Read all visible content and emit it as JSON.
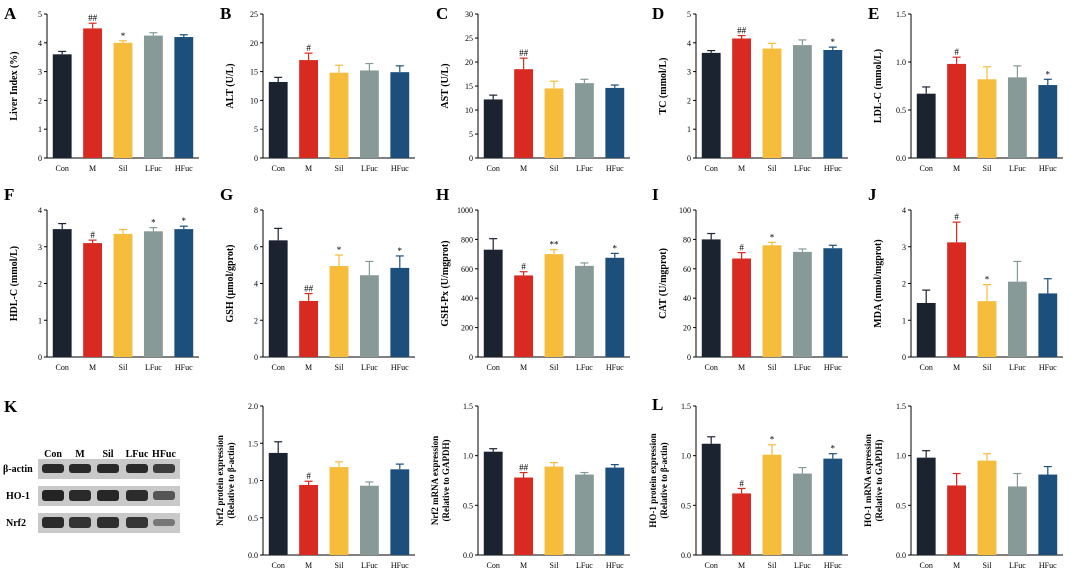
{
  "figure": {
    "groups": [
      "Con",
      "M",
      "Sil",
      "LFuc",
      "HFuc"
    ],
    "colors": [
      "#1b2230",
      "#d82a20",
      "#f6bd3c",
      "#889a97",
      "#1c4f7c"
    ]
  },
  "chart_data": [
    {
      "id": "A",
      "type": "bar",
      "panel_letter": "A",
      "ylabel": "Liver Index (%)",
      "ylim": [
        0,
        5
      ],
      "yticks": [
        0,
        1,
        2,
        3,
        4,
        5
      ],
      "categories": [
        "Con",
        "M",
        "Sil",
        "LFuc",
        "HFuc"
      ],
      "values": [
        3.6,
        4.5,
        4.0,
        4.25,
        4.2
      ],
      "errors": [
        0.1,
        0.18,
        0.07,
        0.1,
        0.08
      ],
      "marks": [
        "",
        "##",
        "*",
        "",
        ""
      ]
    },
    {
      "id": "B",
      "type": "bar",
      "panel_letter": "B",
      "ylabel": "ALT (U/L)",
      "ylim": [
        0,
        25
      ],
      "yticks": [
        0,
        5,
        10,
        15,
        20,
        25
      ],
      "categories": [
        "Con",
        "M",
        "Sil",
        "LFuc",
        "HFuc"
      ],
      "values": [
        13.2,
        17.0,
        14.8,
        15.2,
        14.9
      ],
      "errors": [
        0.8,
        1.2,
        1.3,
        1.2,
        1.1
      ],
      "marks": [
        "",
        "#",
        "",
        "",
        ""
      ]
    },
    {
      "id": "C",
      "type": "bar",
      "panel_letter": "C",
      "ylabel": "AST (U/L)",
      "ylim": [
        0,
        30
      ],
      "yticks": [
        0,
        5,
        10,
        15,
        20,
        25,
        30
      ],
      "categories": [
        "Con",
        "M",
        "Sil",
        "LFuc",
        "HFuc"
      ],
      "values": [
        12.2,
        18.5,
        14.5,
        15.6,
        14.6
      ],
      "errors": [
        0.9,
        2.3,
        1.5,
        0.8,
        0.6
      ],
      "marks": [
        "",
        "##",
        "",
        "",
        ""
      ]
    },
    {
      "id": "D",
      "type": "bar",
      "panel_letter": "D",
      "ylabel": "TC (mmol/L)",
      "ylim": [
        0,
        5
      ],
      "yticks": [
        0,
        1,
        2,
        3,
        4,
        5
      ],
      "categories": [
        "Con",
        "M",
        "Sil",
        "LFuc",
        "HFuc"
      ],
      "values": [
        3.65,
        4.15,
        3.8,
        3.92,
        3.75
      ],
      "errors": [
        0.08,
        0.1,
        0.18,
        0.18,
        0.1
      ],
      "marks": [
        "",
        "##",
        "",
        "",
        "*"
      ]
    },
    {
      "id": "E",
      "type": "bar",
      "panel_letter": "E",
      "ylabel": "LDL-C (mmol/L)",
      "ylim": [
        0,
        1.5
      ],
      "yticks": [
        "0.0",
        "0.5",
        "1.0",
        "1.5"
      ],
      "categories": [
        "Con",
        "M",
        "Sil",
        "LFuc",
        "HFuc"
      ],
      "values": [
        0.67,
        0.98,
        0.82,
        0.84,
        0.76
      ],
      "errors": [
        0.07,
        0.07,
        0.13,
        0.12,
        0.06
      ],
      "marks": [
        "",
        "#",
        "",
        "",
        "*"
      ]
    },
    {
      "id": "F",
      "type": "bar",
      "panel_letter": "F",
      "ylabel": "HDL-C (mmol/L)",
      "ylim": [
        0,
        4
      ],
      "yticks": [
        0,
        1,
        2,
        3,
        4
      ],
      "categories": [
        "Con",
        "M",
        "Sil",
        "LFuc",
        "HFuc"
      ],
      "values": [
        3.48,
        3.1,
        3.35,
        3.42,
        3.48
      ],
      "errors": [
        0.15,
        0.08,
        0.12,
        0.1,
        0.08
      ],
      "marks": [
        "",
        "#",
        "",
        "*",
        "*"
      ]
    },
    {
      "id": "G",
      "type": "bar",
      "panel_letter": "G",
      "ylabel": "GSH (μmol/gprot)",
      "ylim": [
        0,
        8
      ],
      "yticks": [
        0,
        2,
        4,
        6,
        8
      ],
      "categories": [
        "Con",
        "M",
        "Sil",
        "LFuc",
        "HFuc"
      ],
      "values": [
        6.35,
        3.05,
        4.95,
        4.45,
        4.85
      ],
      "errors": [
        0.65,
        0.4,
        0.6,
        0.75,
        0.65
      ],
      "marks": [
        "",
        "##",
        "*",
        "",
        "*"
      ]
    },
    {
      "id": "H",
      "type": "bar",
      "panel_letter": "H",
      "ylabel": "GSH-Px (U/mgprot)",
      "ylim": [
        0,
        1000
      ],
      "yticks": [
        0,
        200,
        400,
        600,
        800,
        1000
      ],
      "categories": [
        "Con",
        "M",
        "Sil",
        "LFuc",
        "HFuc"
      ],
      "values": [
        730,
        555,
        700,
        620,
        675
      ],
      "errors": [
        75,
        25,
        30,
        20,
        30
      ],
      "marks": [
        "",
        "#",
        "**",
        "",
        "*"
      ]
    },
    {
      "id": "I",
      "type": "bar",
      "panel_letter": "I",
      "ylabel": "CAT (U/mgprot)",
      "ylim": [
        0,
        100
      ],
      "yticks": [
        0,
        20,
        40,
        60,
        80,
        100
      ],
      "categories": [
        "Con",
        "M",
        "Sil",
        "LFuc",
        "HFuc"
      ],
      "values": [
        80,
        67,
        76,
        71.5,
        74
      ],
      "errors": [
        4,
        4,
        2,
        2,
        2
      ],
      "marks": [
        "",
        "#",
        "*",
        "",
        ""
      ]
    },
    {
      "id": "J",
      "type": "bar",
      "panel_letter": "J",
      "ylabel": "MDA (nmol/mgprot)",
      "ylim": [
        0,
        4
      ],
      "yticks": [
        0,
        1,
        2,
        3,
        4
      ],
      "categories": [
        "Con",
        "M",
        "Sil",
        "LFuc",
        "HFuc"
      ],
      "values": [
        1.47,
        3.12,
        1.52,
        2.05,
        1.73
      ],
      "errors": [
        0.35,
        0.55,
        0.45,
        0.55,
        0.4
      ],
      "marks": [
        "",
        "#",
        "*",
        "",
        ""
      ]
    },
    {
      "id": "K1",
      "type": "bar",
      "panel_letter": "",
      "ylabel": "Nrf2 protein expression (Relative to β-actin)",
      "ylim": [
        0,
        2.0
      ],
      "yticks": [
        "0.0",
        "0.5",
        "1.0",
        "1.5",
        "2.0"
      ],
      "categories": [
        "Con",
        "M",
        "Sil",
        "LFuc",
        "HFuc"
      ],
      "values": [
        1.37,
        0.94,
        1.18,
        0.93,
        1.15
      ],
      "errors": [
        0.15,
        0.05,
        0.07,
        0.05,
        0.07
      ],
      "marks": [
        "",
        "#",
        "",
        "",
        ""
      ]
    },
    {
      "id": "K2",
      "type": "bar",
      "panel_letter": "",
      "ylabel": "Nrf2 mRNA expression (Relative to GAPDH)",
      "ylim": [
        0,
        1.5
      ],
      "yticks": [
        "0.0",
        "0.5",
        "1.0",
        "1.5"
      ],
      "categories": [
        "Con",
        "M",
        "Sil",
        "LFuc",
        "HFuc"
      ],
      "values": [
        1.04,
        0.78,
        0.89,
        0.81,
        0.88
      ],
      "errors": [
        0.03,
        0.05,
        0.04,
        0.02,
        0.03
      ],
      "marks": [
        "",
        "##",
        "",
        "",
        ""
      ]
    },
    {
      "id": "L1",
      "type": "bar",
      "panel_letter": "L",
      "ylabel": "HO-1 protein expression (Relative to β-actin)",
      "ylim": [
        0,
        1.5
      ],
      "yticks": [
        "0.0",
        "0.5",
        "1.0",
        "1.5"
      ],
      "categories": [
        "Con",
        "M",
        "Sil",
        "LFuc",
        "HFuc"
      ],
      "values": [
        1.12,
        0.62,
        1.01,
        0.82,
        0.97
      ],
      "errors": [
        0.07,
        0.05,
        0.1,
        0.06,
        0.05
      ],
      "marks": [
        "",
        "#",
        "*",
        "",
        "*"
      ]
    },
    {
      "id": "L2",
      "type": "bar",
      "panel_letter": "",
      "ylabel": "HO-1 mRNA expression (Relative to GAPDH)",
      "ylim": [
        0,
        1.5
      ],
      "yticks": [
        "0.0",
        "0.5",
        "1.0",
        "1.5"
      ],
      "categories": [
        "Con",
        "M",
        "Sil",
        "LFuc",
        "HFuc"
      ],
      "values": [
        0.98,
        0.7,
        0.95,
        0.69,
        0.81
      ],
      "errors": [
        0.07,
        0.12,
        0.07,
        0.13,
        0.08
      ],
      "marks": [
        "",
        "",
        "",
        "",
        ""
      ]
    }
  ],
  "blot": {
    "panel_letter": "K",
    "lanes": [
      "Con",
      "M",
      "Sil",
      "LFuc",
      "HFuc"
    ],
    "rows": [
      "β-actin",
      "HO-1",
      "Nrf2"
    ]
  }
}
